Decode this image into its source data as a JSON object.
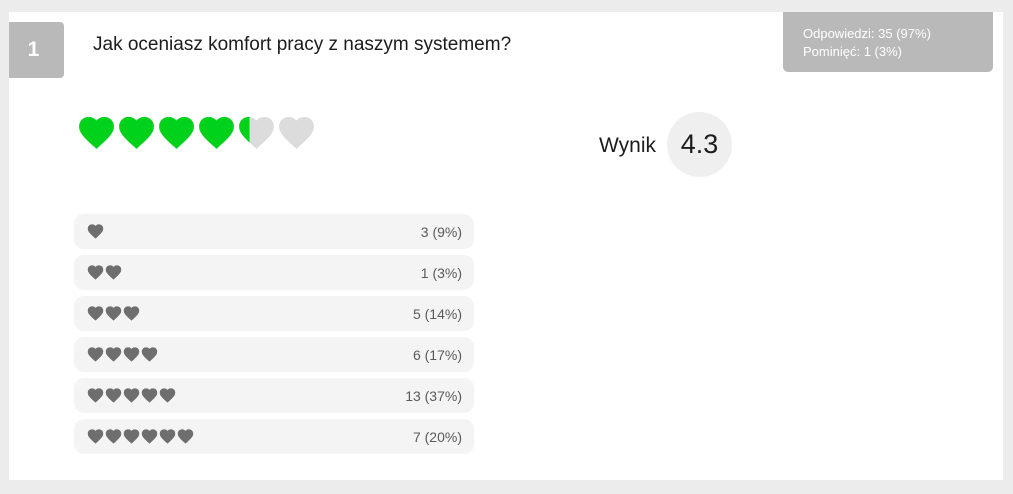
{
  "question": {
    "number": "1",
    "text": "Jak oceniasz komfort pracy z naszym systemem?"
  },
  "stats": {
    "answers": "Odpowiedzi: 35 (97%)",
    "skipped": "Pominięć: 1 (3%)"
  },
  "rating": {
    "max": 6,
    "filled_fraction": 4.3,
    "icon": "heart-icon",
    "filled_color": "#00d21c",
    "empty_color": "#dcdcdc"
  },
  "score": {
    "label": "Wynik",
    "value": "4.3"
  },
  "distribution": {
    "heart_color": "#6e6e6e",
    "rows": [
      {
        "hearts": 1,
        "count": "3 (9%)"
      },
      {
        "hearts": 2,
        "count": "1 (3%)"
      },
      {
        "hearts": 3,
        "count": "5 (14%)"
      },
      {
        "hearts": 4,
        "count": "6 (17%)"
      },
      {
        "hearts": 5,
        "count": "13 (37%)"
      },
      {
        "hearts": 6,
        "count": "7 (20%)"
      }
    ]
  }
}
